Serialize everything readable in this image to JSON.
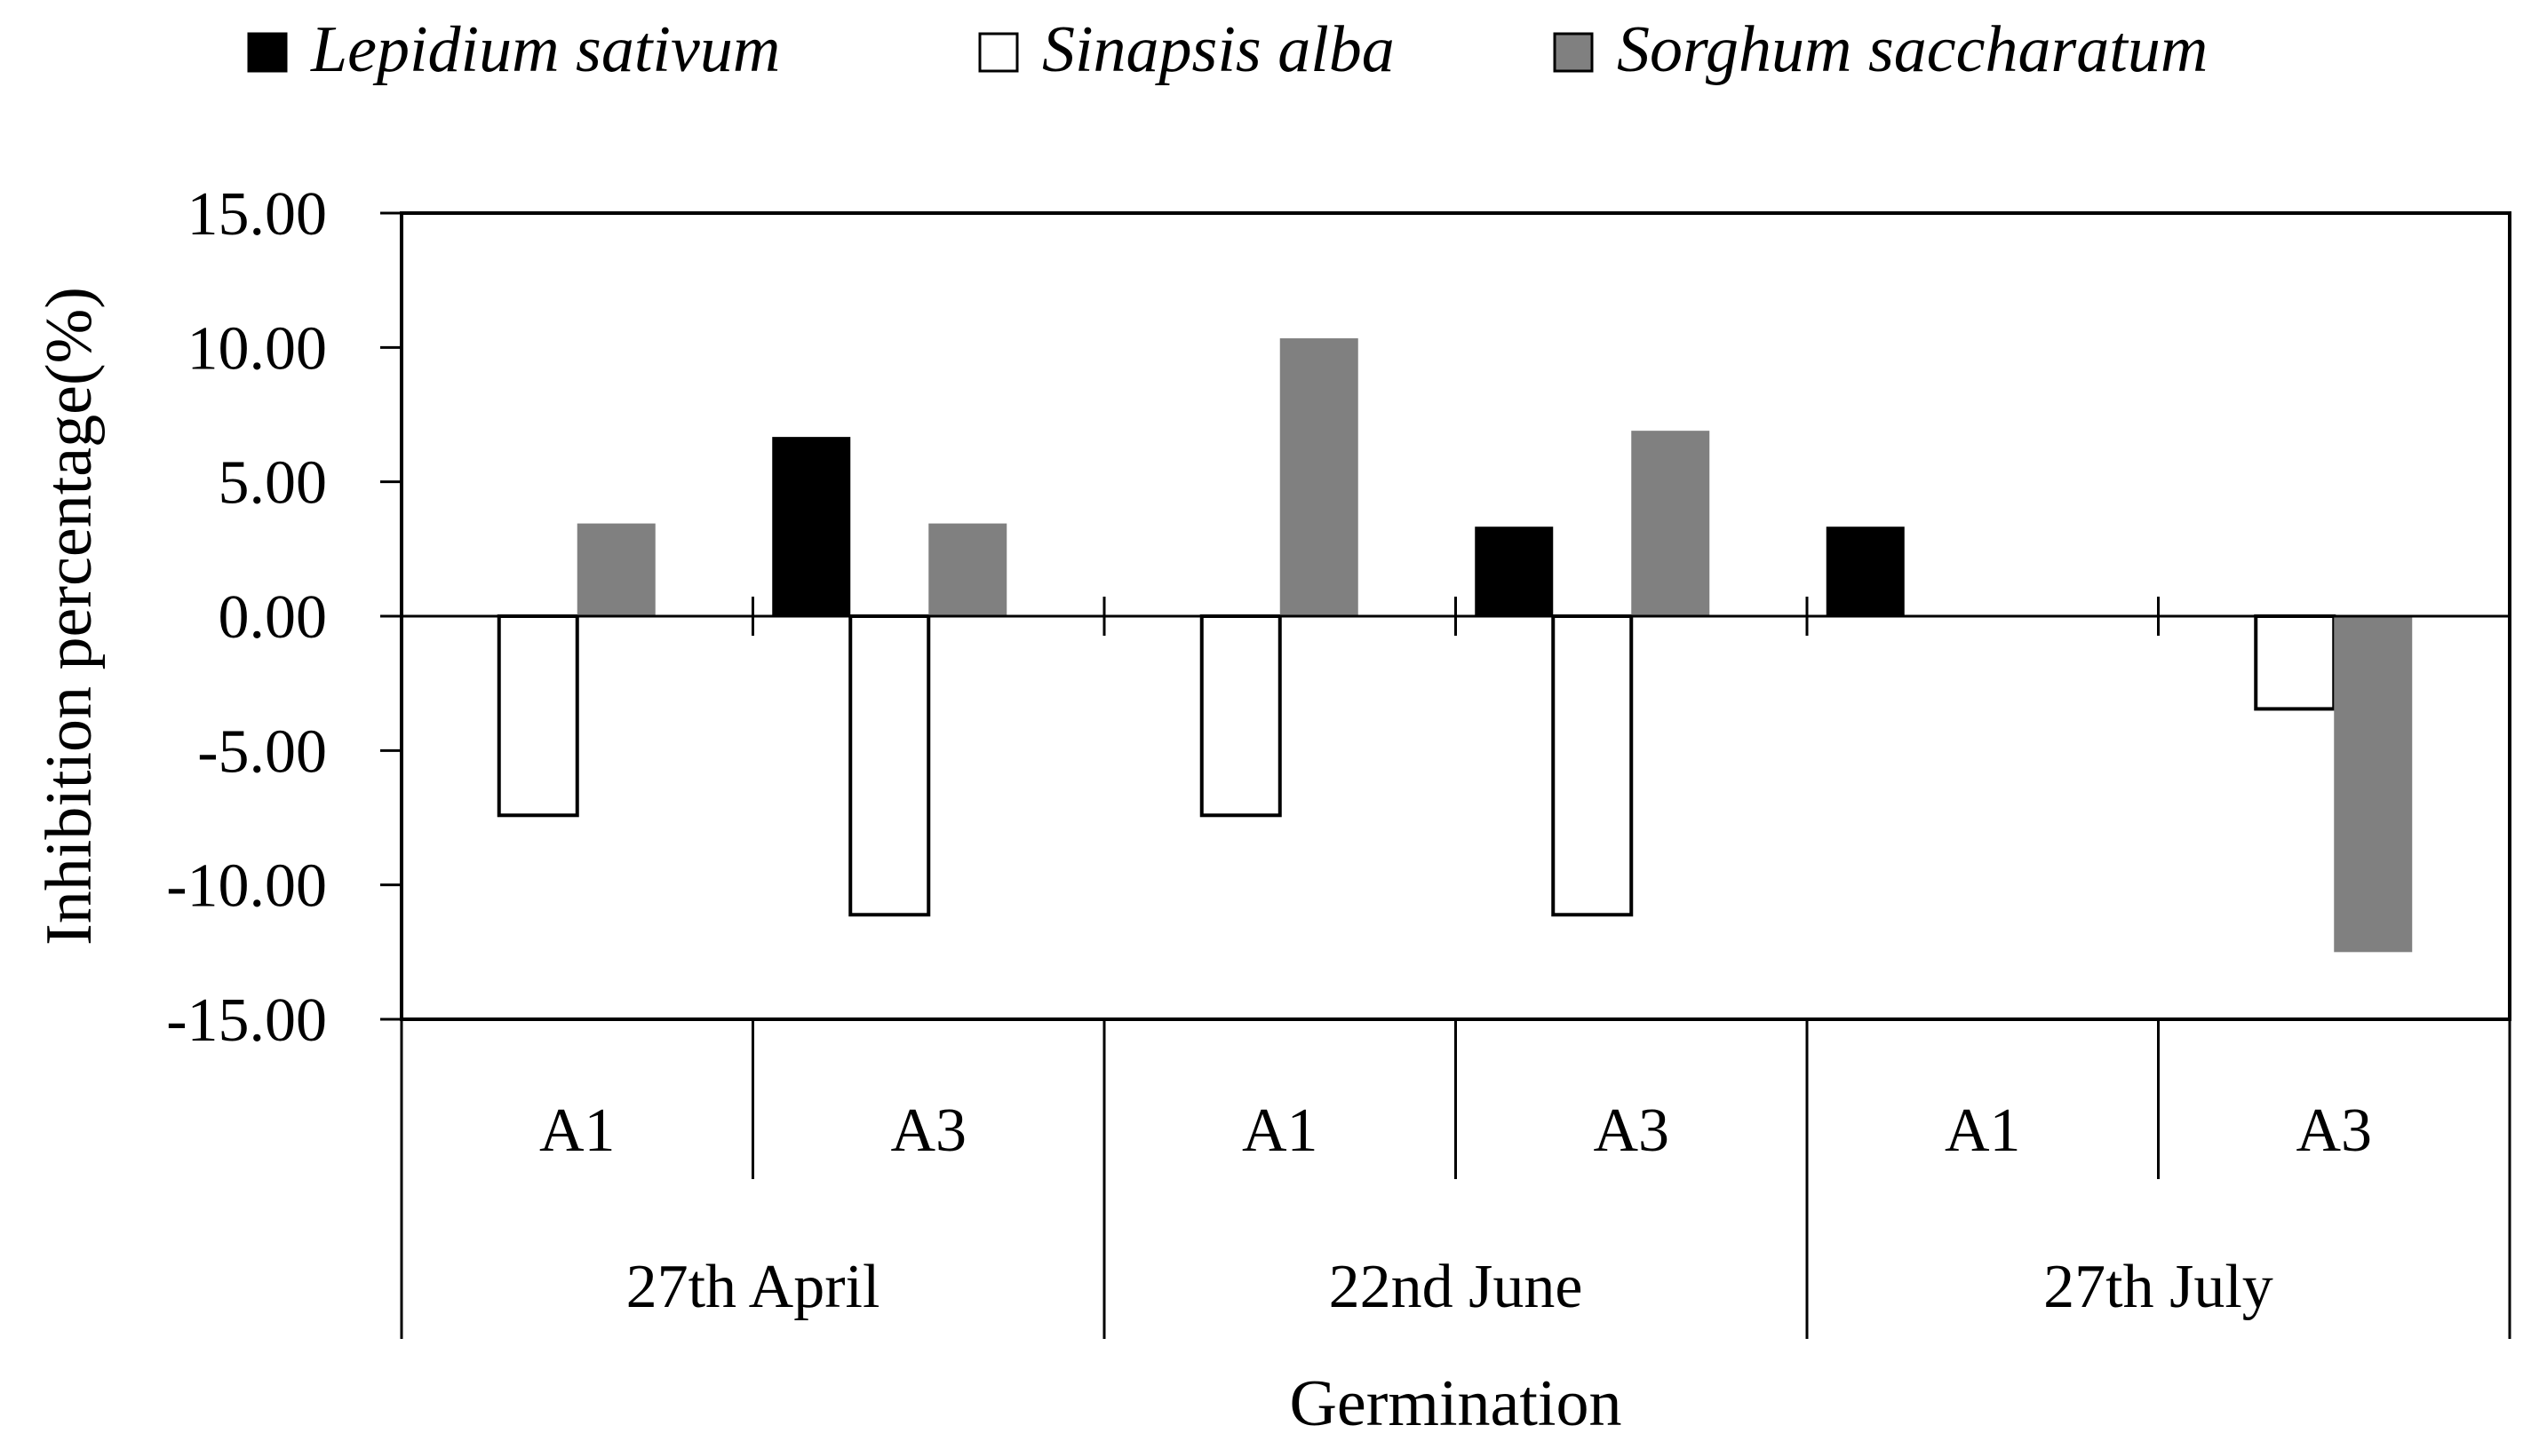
{
  "chart_data": {
    "type": "bar",
    "groups": [
      "27th April",
      "22nd June",
      "27th July"
    ],
    "categories": [
      "A1",
      "A3",
      "A1",
      "A3",
      "A1",
      "A3"
    ],
    "category_group_index": [
      0,
      0,
      1,
      1,
      2,
      2
    ],
    "series": [
      {
        "name": "Lepidium sativum",
        "color": "#000000",
        "values": [
          0,
          6.67,
          0,
          3.33,
          3.33,
          0
        ]
      },
      {
        "name": "Sinapsis alba",
        "color": "#ffffff",
        "values": [
          -7.41,
          -11.11,
          -7.41,
          -11.11,
          0,
          -3.45
        ]
      },
      {
        "name": "Sorghum saccharatum",
        "color": "#808080",
        "values": [
          3.45,
          3.45,
          10.34,
          6.9,
          0,
          -12.5
        ]
      }
    ],
    "xlabel": "Germination",
    "ylabel": "Inhibition percentage(%)",
    "ylim": [
      -15,
      15
    ],
    "yticks": [
      15,
      10,
      5,
      0,
      -5,
      -10,
      -15
    ],
    "ytick_labels": [
      "15.00",
      "10.00",
      "5.00",
      "0.00",
      "-5.00",
      "-10.00",
      "-15.00"
    ],
    "legend_position": "top",
    "grid": false
  }
}
